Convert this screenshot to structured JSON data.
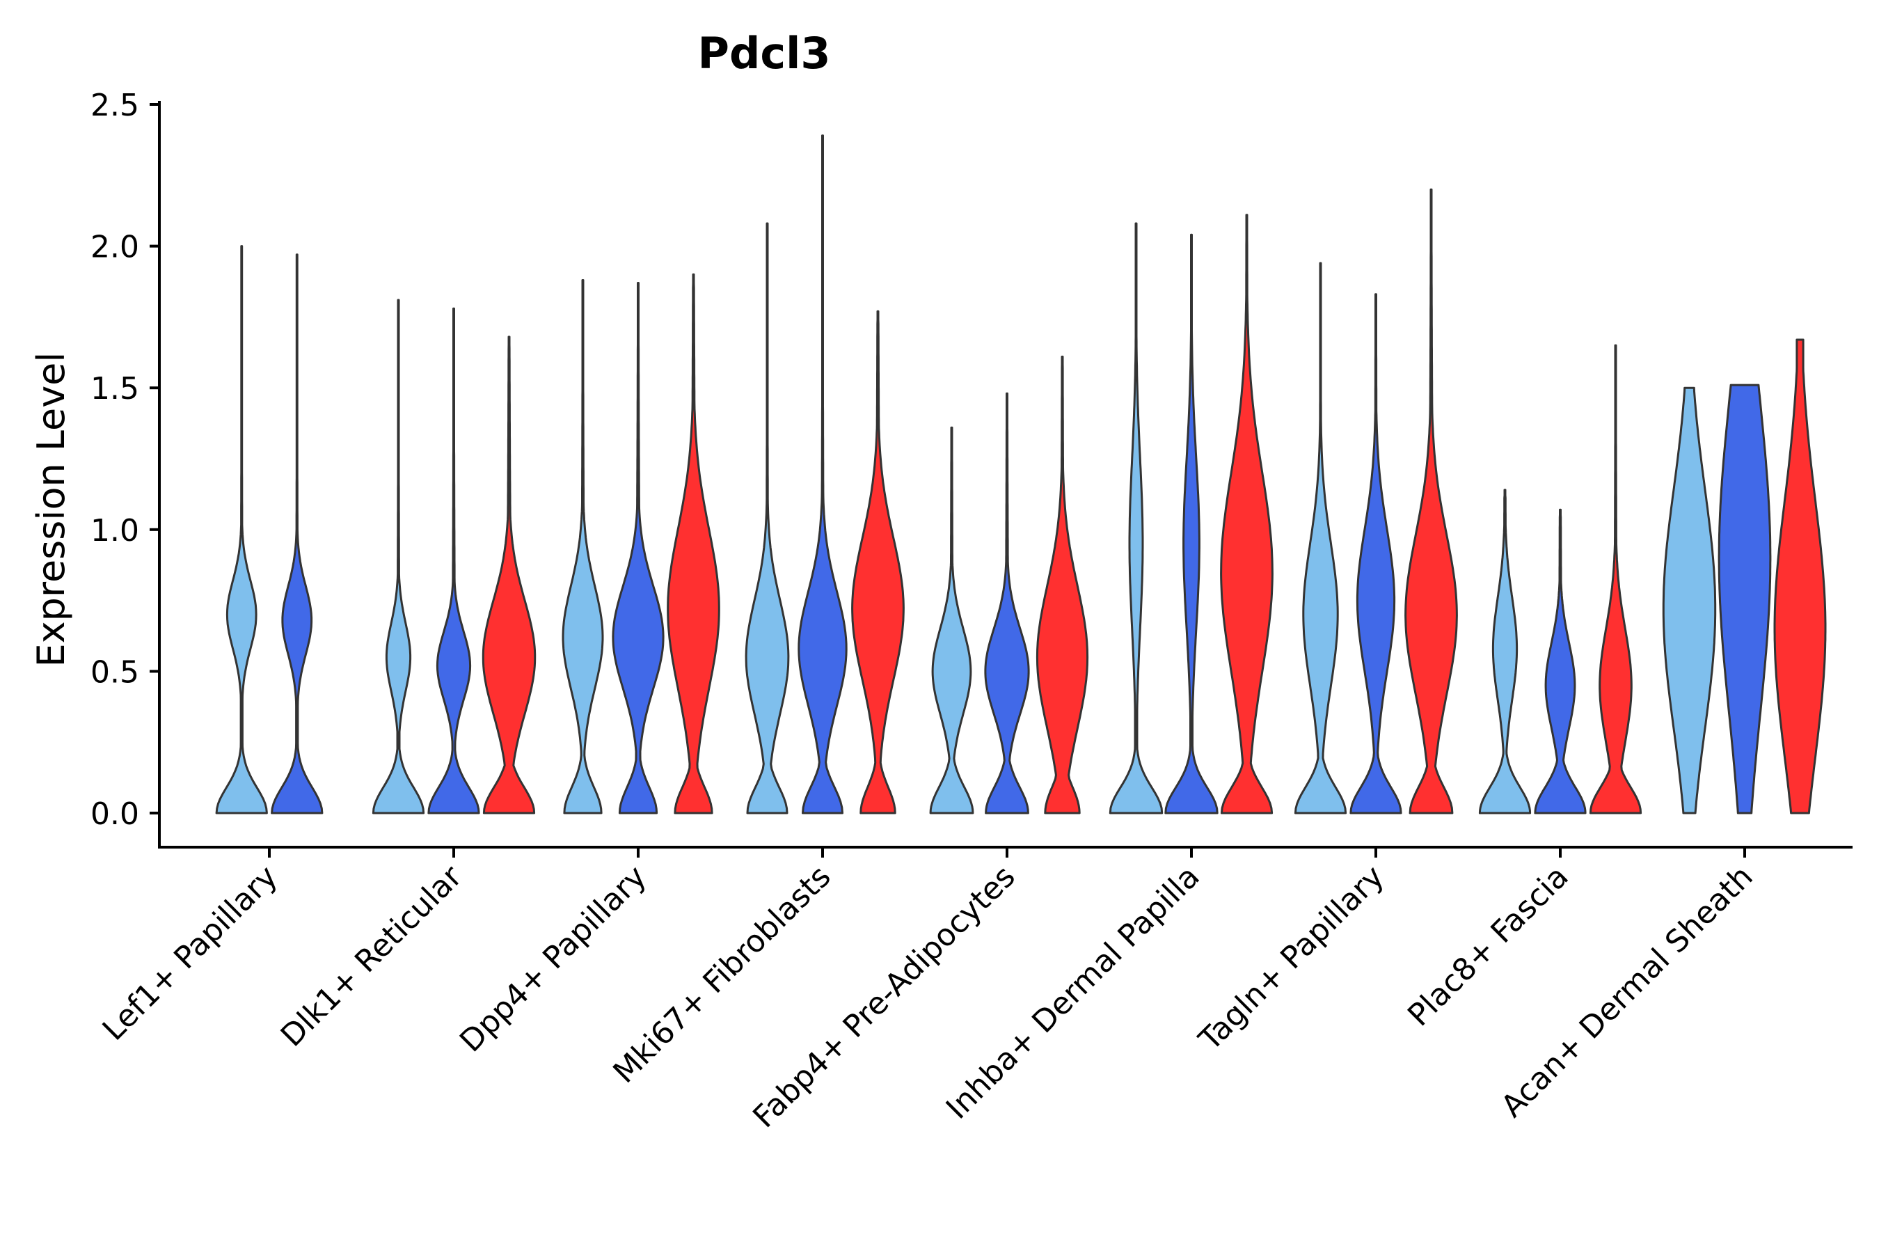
{
  "chart_data": {
    "type": "violin",
    "title": "Pdcl3",
    "xlabel": "",
    "ylabel": "Expression Level",
    "ylim": [
      -0.12,
      2.5
    ],
    "yticks": [
      0.0,
      0.5,
      1.0,
      1.5,
      2.0,
      2.5
    ],
    "ytick_labels": [
      "0.0",
      "0.5",
      "1.0",
      "1.5",
      "2.0",
      "2.5"
    ],
    "grid": false,
    "legend": "none",
    "colors": {
      "light_blue": "#7fbfed",
      "blue": "#4169e8",
      "red": "#ff3030",
      "outline": "#333333"
    },
    "categories": [
      "Lef1+ Papillary",
      "Dlk1+ Reticular",
      "Dpp4+ Papillary",
      "Mki67+ Fibroblasts",
      "Fabp4+ Pre-Adipocytes",
      "Inhba+ Dermal Papilla",
      "Tagln+ Papillary",
      "Plac8+ Fascia",
      "Acan+ Dermal Sheath"
    ],
    "groups": [
      {
        "category": "Lef1+ Papillary",
        "violins": [
          {
            "color": "light_blue",
            "max": 2.0,
            "shape": "bimodal",
            "zero_weight": 0.95,
            "mode": 0.7,
            "mode_weight": 0.55,
            "spread": 0.12,
            "tail_weight": 0.03
          },
          {
            "color": "blue",
            "max": 1.97,
            "shape": "bimodal",
            "zero_weight": 0.95,
            "mode": 0.68,
            "mode_weight": 0.55,
            "spread": 0.12,
            "tail_weight": 0.03
          }
        ]
      },
      {
        "category": "Dlk1+ Reticular",
        "violins": [
          {
            "color": "light_blue",
            "max": 1.81,
            "shape": "bimodal",
            "zero_weight": 0.95,
            "mode": 0.55,
            "mode_weight": 0.45,
            "spread": 0.12,
            "tail_weight": 0.04
          },
          {
            "color": "blue",
            "max": 1.78,
            "shape": "bimodal",
            "zero_weight": 0.95,
            "mode": 0.52,
            "mode_weight": 0.62,
            "spread": 0.12,
            "tail_weight": 0.05
          },
          {
            "color": "red",
            "max": 1.68,
            "shape": "bimodal",
            "zero_weight": 0.95,
            "mode": 0.55,
            "mode_weight": 0.98,
            "spread": 0.2,
            "tail_weight": 0.1
          }
        ]
      },
      {
        "category": "Dpp4+ Papillary",
        "violins": [
          {
            "color": "light_blue",
            "max": 1.88,
            "shape": "bimodal",
            "zero_weight": 0.7,
            "mode": 0.62,
            "mode_weight": 0.75,
            "spread": 0.18,
            "tail_weight": 0.06
          },
          {
            "color": "blue",
            "max": 1.87,
            "shape": "bimodal",
            "zero_weight": 0.7,
            "mode": 0.62,
            "mode_weight": 0.95,
            "spread": 0.18,
            "tail_weight": 0.08
          },
          {
            "color": "red",
            "max": 1.9,
            "shape": "bimodal",
            "zero_weight": 0.7,
            "mode": 0.72,
            "mode_weight": 0.97,
            "spread": 0.28,
            "tail_weight": 0.12
          }
        ]
      },
      {
        "category": "Mki67+ Fibroblasts",
        "violins": [
          {
            "color": "light_blue",
            "max": 2.08,
            "shape": "bimodal",
            "zero_weight": 0.75,
            "mode": 0.55,
            "mode_weight": 0.8,
            "spread": 0.2,
            "tail_weight": 0.05
          },
          {
            "color": "blue",
            "max": 2.39,
            "shape": "bimodal",
            "zero_weight": 0.75,
            "mode": 0.58,
            "mode_weight": 0.9,
            "spread": 0.2,
            "tail_weight": 0.06
          },
          {
            "color": "red",
            "max": 1.77,
            "shape": "bimodal",
            "zero_weight": 0.65,
            "mode": 0.72,
            "mode_weight": 0.97,
            "spread": 0.25,
            "tail_weight": 0.1
          }
        ]
      },
      {
        "category": "Fabp4+ Pre-Adipocytes",
        "violins": [
          {
            "color": "light_blue",
            "max": 1.36,
            "shape": "bimodal",
            "zero_weight": 0.8,
            "mode": 0.5,
            "mode_weight": 0.72,
            "spread": 0.15,
            "tail_weight": 0.05
          },
          {
            "color": "blue",
            "max": 1.48,
            "shape": "bimodal",
            "zero_weight": 0.8,
            "mode": 0.5,
            "mode_weight": 0.82,
            "spread": 0.15,
            "tail_weight": 0.06
          },
          {
            "color": "red",
            "max": 1.61,
            "shape": "bimodal",
            "zero_weight": 0.65,
            "mode": 0.55,
            "mode_weight": 0.95,
            "spread": 0.25,
            "tail_weight": 0.08
          }
        ]
      },
      {
        "category": "Inhba+ Dermal Papilla",
        "violins": [
          {
            "color": "light_blue",
            "max": 2.08,
            "shape": "bimodal",
            "zero_weight": 0.98,
            "mode": 0.95,
            "mode_weight": 0.25,
            "spread": 0.3,
            "tail_weight": 0.04
          },
          {
            "color": "blue",
            "max": 2.04,
            "shape": "bimodal",
            "zero_weight": 0.98,
            "mode": 0.95,
            "mode_weight": 0.3,
            "spread": 0.3,
            "tail_weight": 0.04
          },
          {
            "color": "red",
            "max": 2.11,
            "shape": "bimodal",
            "zero_weight": 0.95,
            "mode": 0.85,
            "mode_weight": 0.97,
            "spread": 0.35,
            "tail_weight": 0.1
          }
        ]
      },
      {
        "category": "Tagln+ Papillary",
        "violins": [
          {
            "color": "light_blue",
            "max": 1.94,
            "shape": "bimodal",
            "zero_weight": 0.95,
            "mode": 0.7,
            "mode_weight": 0.65,
            "spread": 0.25,
            "tail_weight": 0.05
          },
          {
            "color": "blue",
            "max": 1.83,
            "shape": "bimodal",
            "zero_weight": 0.95,
            "mode": 0.75,
            "mode_weight": 0.7,
            "spread": 0.25,
            "tail_weight": 0.06
          },
          {
            "color": "red",
            "max": 2.2,
            "shape": "bimodal",
            "zero_weight": 0.8,
            "mode": 0.7,
            "mode_weight": 0.97,
            "spread": 0.28,
            "tail_weight": 0.12
          }
        ]
      },
      {
        "category": "Plac8+ Fascia",
        "violins": [
          {
            "color": "light_blue",
            "max": 1.14,
            "shape": "bimodal",
            "zero_weight": 0.95,
            "mode": 0.58,
            "mode_weight": 0.45,
            "spread": 0.18,
            "tail_weight": 0.05
          },
          {
            "color": "blue",
            "max": 1.07,
            "shape": "bimodal",
            "zero_weight": 0.95,
            "mode": 0.45,
            "mode_weight": 0.55,
            "spread": 0.15,
            "tail_weight": 0.05
          },
          {
            "color": "red",
            "max": 1.65,
            "shape": "bimodal",
            "zero_weight": 0.95,
            "mode": 0.45,
            "mode_weight": 0.6,
            "spread": 0.2,
            "tail_weight": 0.06
          }
        ]
      },
      {
        "category": "Acan+ Dermal Sheath",
        "violins": [
          {
            "color": "light_blue",
            "max": 1.5,
            "shape": "broad",
            "ymin": 0.0,
            "bottom_weight": 0.12,
            "mode": 0.72,
            "mode_weight": 0.98,
            "spread": 0.42,
            "top_weight": 0.18
          },
          {
            "color": "blue",
            "max": 1.51,
            "shape": "broad",
            "ymin": 0.0,
            "bottom_weight": 0.12,
            "mode": 0.9,
            "mode_weight": 0.97,
            "spread": 0.55,
            "top_weight": 0.45
          },
          {
            "color": "red",
            "max": 1.67,
            "shape": "broad",
            "ymin": 0.0,
            "bottom_weight": 0.12,
            "mode": 0.65,
            "mode_weight": 0.96,
            "spread": 0.45,
            "top_weight": 0.1
          }
        ]
      }
    ]
  }
}
